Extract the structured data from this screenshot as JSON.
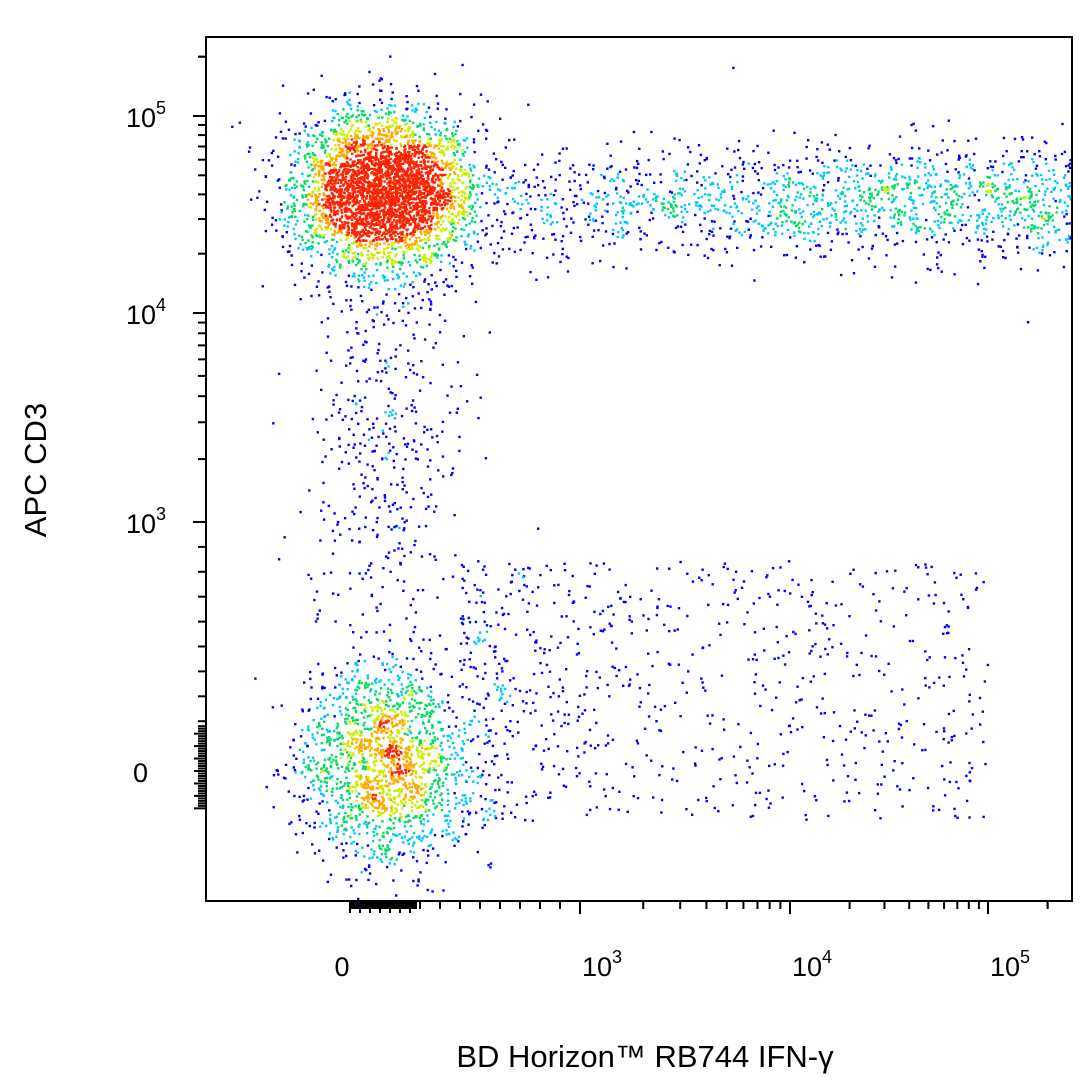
{
  "chart_data": {
    "type": "scatter",
    "title": "",
    "xlabel": "BD Horizon™ RB744 IFN-γ",
    "ylabel": "APC CD3",
    "x_scale": "biexponential",
    "y_scale": "biexponential",
    "xlim": [
      -150,
      200000
    ],
    "ylim": [
      -150,
      200000
    ],
    "x_ticks": [
      {
        "value": 0,
        "label": "0",
        "sup": ""
      },
      {
        "value": 1000,
        "label": "10",
        "sup": "3"
      },
      {
        "value": 10000,
        "label": "10",
        "sup": "4"
      },
      {
        "value": 100000,
        "label": "10",
        "sup": "5"
      }
    ],
    "y_ticks": [
      {
        "value": 0,
        "label": "0",
        "sup": ""
      },
      {
        "value": 1000,
        "label": "10",
        "sup": "3"
      },
      {
        "value": 10000,
        "label": "10",
        "sup": "4"
      },
      {
        "value": 100000,
        "label": "10",
        "sup": "5"
      }
    ],
    "color_scale": [
      "#0000ff",
      "#00c8ff",
      "#00dd66",
      "#ccee00",
      "#ffaa00",
      "#ff2200"
    ],
    "populations": [
      {
        "x_center": 20,
        "y_center": 42000,
        "count": 3600,
        "density": "high"
      },
      {
        "x_center": 20,
        "y_center": 30,
        "count": 1700,
        "density": "medium"
      },
      {
        "x_center": 12000,
        "y_center": 37000,
        "count": 1500,
        "density": "low"
      },
      {
        "x_center": 3000,
        "y_center": 120,
        "count": 800,
        "density": "low"
      },
      {
        "x_center": 20,
        "y_center": 3000,
        "count": 500,
        "density": "low"
      }
    ],
    "grid": false,
    "legend": "none"
  }
}
